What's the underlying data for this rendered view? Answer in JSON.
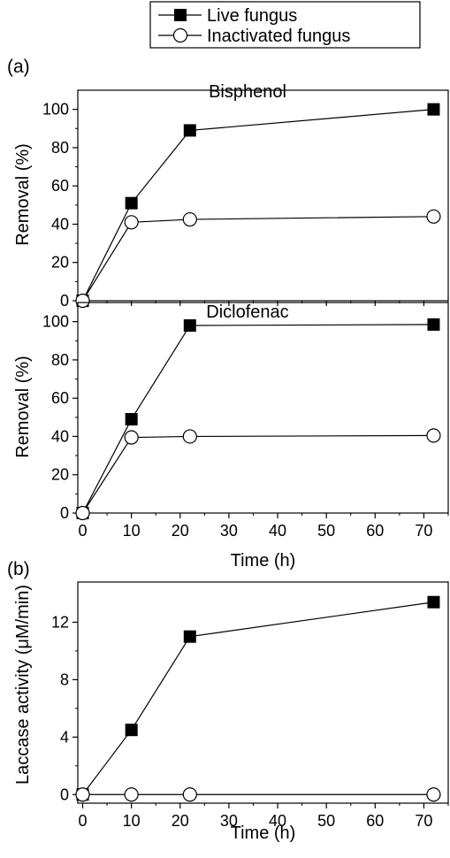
{
  "legend": {
    "entries": [
      {
        "label": "Live fungus",
        "marker": "filled-square"
      },
      {
        "label": "Inactivated fungus",
        "marker": "open-circle"
      }
    ]
  },
  "colors": {
    "line": "#000000",
    "filled_marker": "#000000",
    "open_marker": "#ffffff"
  },
  "chart_data": [
    {
      "type": "line",
      "panel_label": "(a)",
      "title": "Bisphenol",
      "xlabel": "",
      "ylabel": "Removal (%)",
      "x": [
        0,
        10,
        22,
        72
      ],
      "xlim": [
        -1,
        75
      ],
      "ylim": [
        0,
        110
      ],
      "yticks": [
        0,
        20,
        40,
        60,
        80,
        100
      ],
      "series": [
        {
          "name": "Live fungus",
          "values": [
            0,
            51,
            89,
            100
          ]
        },
        {
          "name": "Inactivated fungus",
          "values": [
            0,
            41,
            42.5,
            44
          ]
        }
      ]
    },
    {
      "type": "line",
      "title": "Diclofenac",
      "xlabel": "Time (h)",
      "ylabel": "Removal (%)",
      "x": [
        0,
        10,
        22,
        72
      ],
      "xlim": [
        -1,
        75
      ],
      "ylim": [
        0,
        110
      ],
      "xticks": [
        0,
        10,
        20,
        30,
        40,
        50,
        60,
        70
      ],
      "yticks": [
        0,
        20,
        40,
        60,
        80,
        100
      ],
      "series": [
        {
          "name": "Live fungus",
          "values": [
            0,
            49,
            98,
            98.5
          ]
        },
        {
          "name": "Inactivated fungus",
          "values": [
            0,
            39.5,
            40,
            40.5
          ]
        }
      ]
    },
    {
      "type": "line",
      "panel_label": "(b)",
      "title": "",
      "xlabel": "Time (h)",
      "ylabel": "Laccase activity (μM/min)",
      "x": [
        0,
        10,
        22,
        72
      ],
      "xlim": [
        -1,
        75
      ],
      "ylim": [
        -0.6,
        14.8
      ],
      "xticks": [
        0,
        10,
        20,
        30,
        40,
        50,
        60,
        70
      ],
      "yticks": [
        0,
        4,
        8,
        12
      ],
      "series": [
        {
          "name": "Live fungus",
          "values": [
            0,
            4.5,
            11,
            13.4
          ]
        },
        {
          "name": "Inactivated fungus",
          "values": [
            0,
            0,
            0,
            0
          ]
        }
      ]
    }
  ]
}
